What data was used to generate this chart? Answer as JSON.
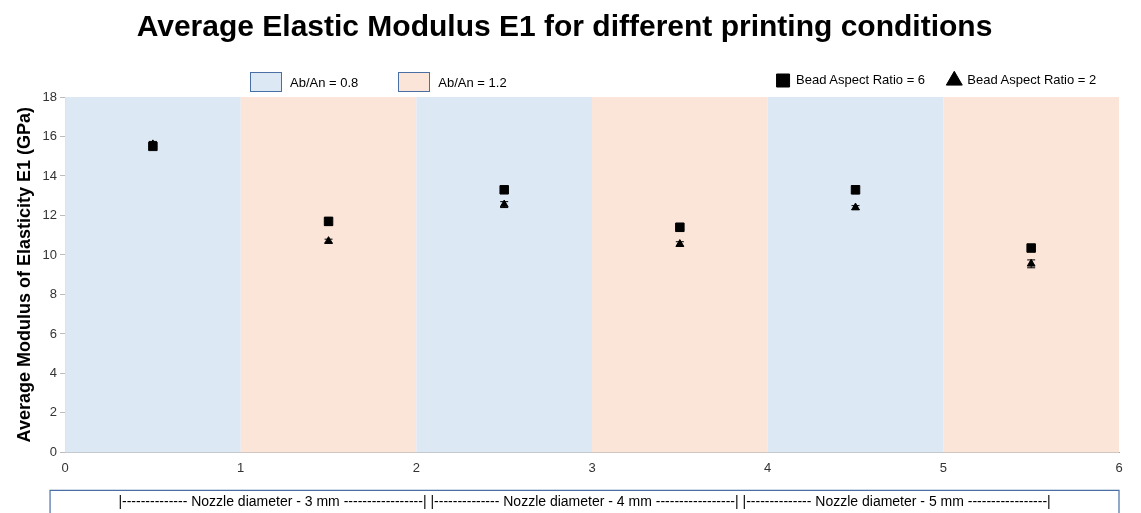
{
  "chart_data": {
    "type": "scatter",
    "title": "Average Elastic Modulus E1 for different printing conditions",
    "ylabel": "Average Modulus of Elasticity E1 (GPa)",
    "x": [
      0.5,
      1.5,
      2.5,
      3.5,
      4.5,
      5.5
    ],
    "series": [
      {
        "name": "Bead Aspect Ratio = 6",
        "color": "#000000",
        "marker": "square",
        "values": [
          15.5,
          11.7,
          13.3,
          11.4,
          13.3,
          10.35
        ],
        "errors": [
          0.15,
          0.2,
          0.12,
          0.2,
          0.2,
          0.1
        ]
      },
      {
        "name": "Bead Aspect Ratio = 2",
        "color": "#000000",
        "marker": "triangle",
        "values": [
          15.6,
          10.7,
          12.55,
          10.55,
          12.4,
          9.55
        ],
        "errors": [
          0.15,
          0.1,
          0.15,
          0.12,
          0.1,
          0.2
        ]
      }
    ],
    "bands": [
      {
        "axis": "x",
        "from": 0,
        "to": 1,
        "label": "Ab/An = 0.8",
        "color": "#dde8f5"
      },
      {
        "axis": "x",
        "from": 1,
        "to": 2,
        "label": "Ab/An  = 1.2",
        "color": "#fbe5d8"
      },
      {
        "axis": "x",
        "from": 2,
        "to": 3,
        "color": "#dde8f5"
      },
      {
        "axis": "x",
        "from": 3,
        "to": 4,
        "color": "#fbe5d8"
      },
      {
        "axis": "x",
        "from": 4,
        "to": 5,
        "color": "#dde8f5"
      },
      {
        "axis": "x",
        "from": 5,
        "to": 6,
        "color": "#fbe5d8"
      }
    ],
    "xlim": [
      0,
      6
    ],
    "xticks": [
      0,
      1,
      2,
      3,
      4,
      5,
      6
    ],
    "ylim": [
      0,
      18
    ],
    "yticks": [
      0,
      2,
      4,
      6,
      8,
      10,
      12,
      14,
      16,
      18
    ],
    "grid": false,
    "legend": "top",
    "annotations": [
      "|-------------- Nozzle diameter - 3 mm -----------------| |-------------- Nozzle diameter - 4 mm -----------------| |-------------- Nozzle diameter - 5 mm -----------------|"
    ]
  }
}
